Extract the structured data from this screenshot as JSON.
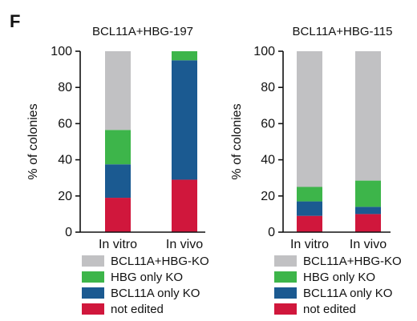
{
  "panel_label": "F",
  "colors": {
    "BCL11A+HBG-KO": "#c1c1c3",
    "HBG only KO": "#3db54a",
    "BCL11A only KO": "#1b5a91",
    "not edited": "#d0173c"
  },
  "chart_data": [
    {
      "type": "bar",
      "stacked": true,
      "title": "BCL11A+HBG-197",
      "ylabel": "% of colonies",
      "ylim": [
        0,
        100
      ],
      "yticks": [
        0,
        20,
        40,
        60,
        80,
        100
      ],
      "categories": [
        "In vitro",
        "In vivo"
      ],
      "series": [
        {
          "name": "not edited",
          "values": [
            19,
            29
          ]
        },
        {
          "name": "BCL11A only KO",
          "values": [
            18.5,
            66
          ]
        },
        {
          "name": "HBG only KO",
          "values": [
            19,
            5
          ]
        },
        {
          "name": "BCL11A+HBG-KO",
          "values": [
            43.5,
            0
          ]
        }
      ],
      "legend": [
        "BCL11A+HBG-KO",
        "HBG only KO",
        "BCL11A only KO",
        "not edited"
      ],
      "legend_position": "bottom"
    },
    {
      "type": "bar",
      "stacked": true,
      "title": "BCL11A+HBG-115",
      "ylabel": "% of colonies",
      "ylim": [
        0,
        100
      ],
      "yticks": [
        0,
        20,
        40,
        60,
        80,
        100
      ],
      "categories": [
        "In vitro",
        "In vivo"
      ],
      "series": [
        {
          "name": "not edited",
          "values": [
            9,
            10
          ]
        },
        {
          "name": "BCL11A only KO",
          "values": [
            8,
            4
          ]
        },
        {
          "name": "HBG only KO",
          "values": [
            8,
            14.5
          ]
        },
        {
          "name": "BCL11A+HBG-KO",
          "values": [
            75,
            71.5
          ]
        }
      ],
      "legend": [
        "BCL11A+HBG-KO",
        "HBG only KO",
        "BCL11A only KO",
        "not edited"
      ],
      "legend_position": "bottom"
    }
  ]
}
